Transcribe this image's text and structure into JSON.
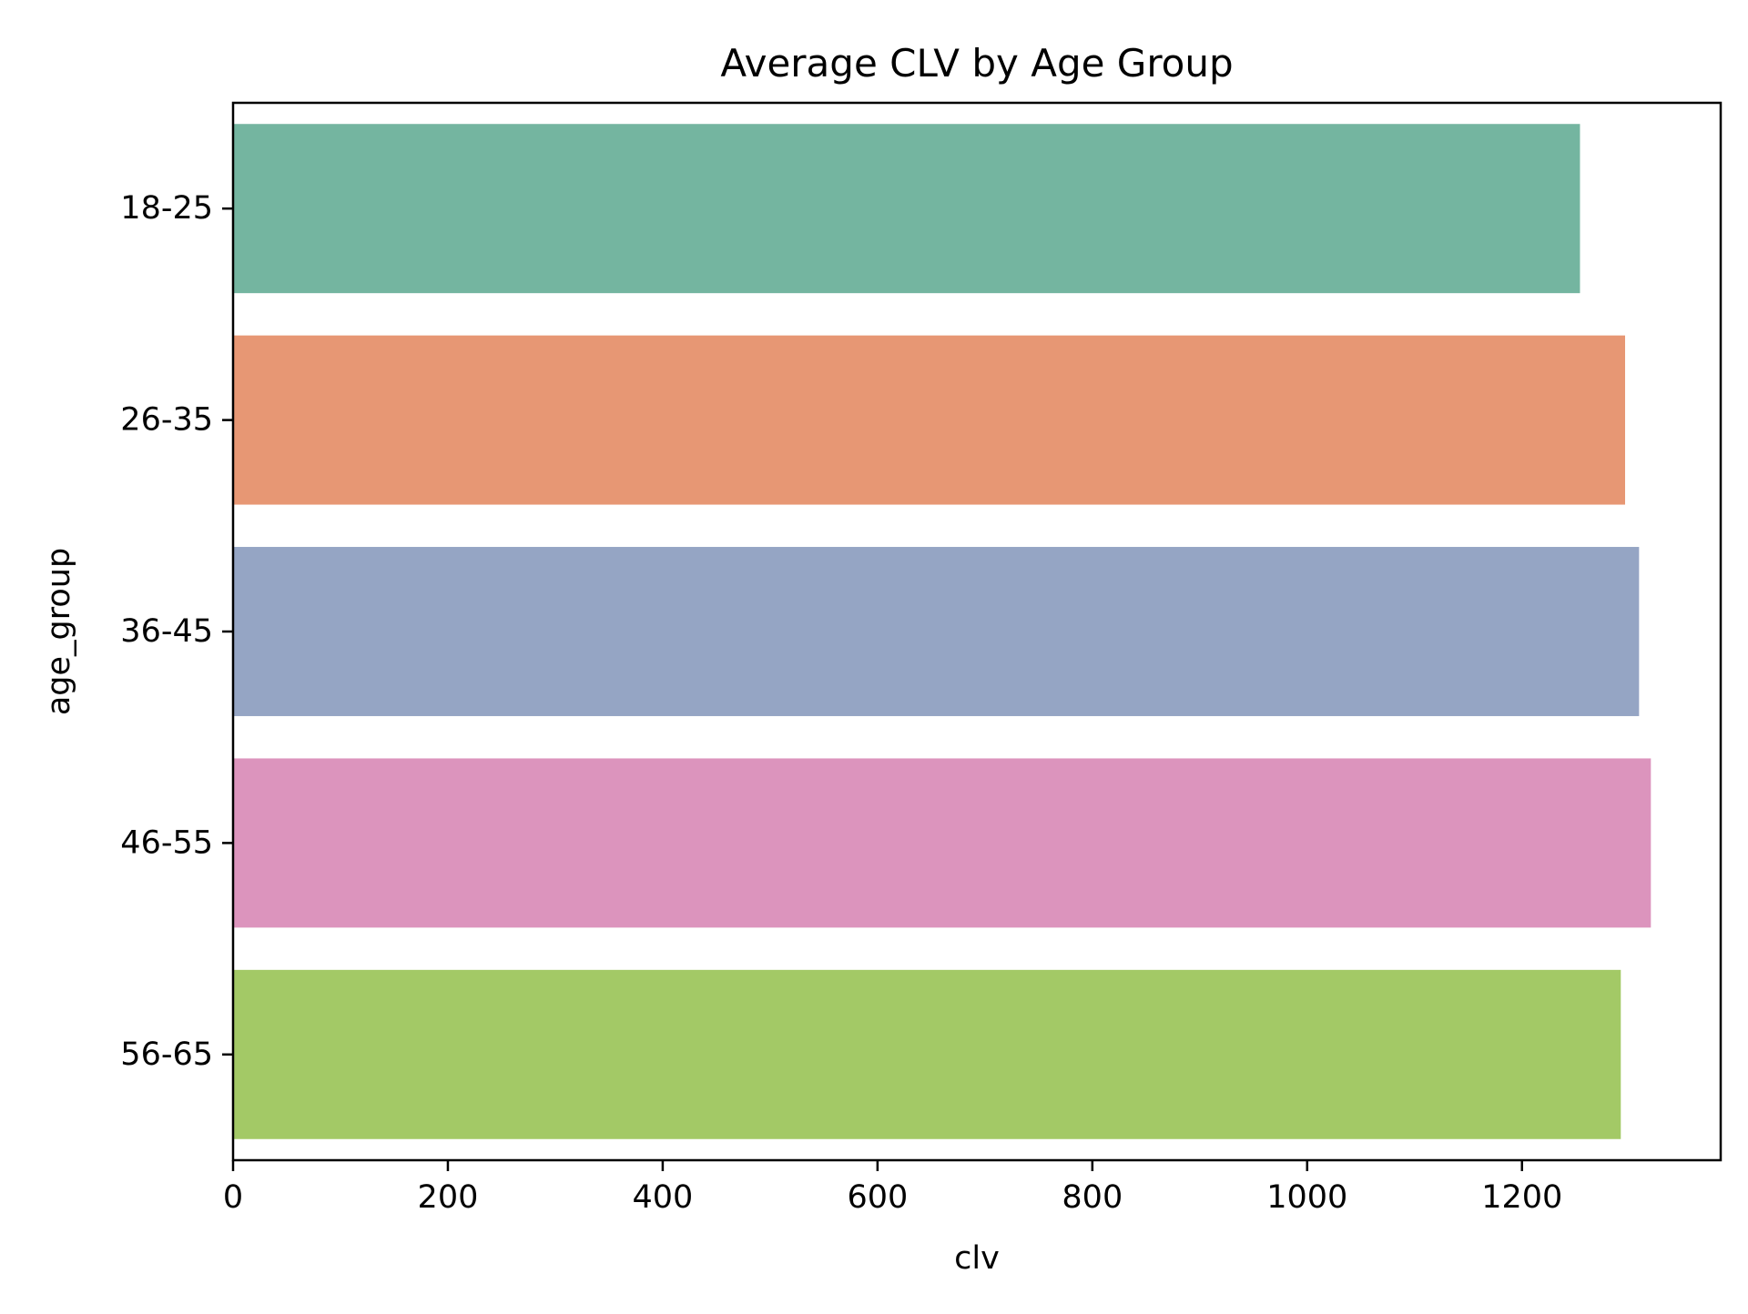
{
  "chart_data": {
    "type": "bar",
    "orientation": "horizontal",
    "title": "Average CLV by Age Group",
    "xlabel": "clv",
    "ylabel": "age_group",
    "categories": [
      "18-25",
      "26-35",
      "36-45",
      "46-55",
      "56-65"
    ],
    "values": [
      1254,
      1296,
      1309,
      1320,
      1292
    ],
    "colors": [
      "#74b5a0",
      "#e79774",
      "#95a5c4",
      "#dc94bd",
      "#a3c966"
    ],
    "xlim": [
      0,
      1385
    ],
    "xticks": [
      0,
      200,
      400,
      600,
      800,
      1000,
      1200
    ],
    "grid": false,
    "legend": "none"
  }
}
